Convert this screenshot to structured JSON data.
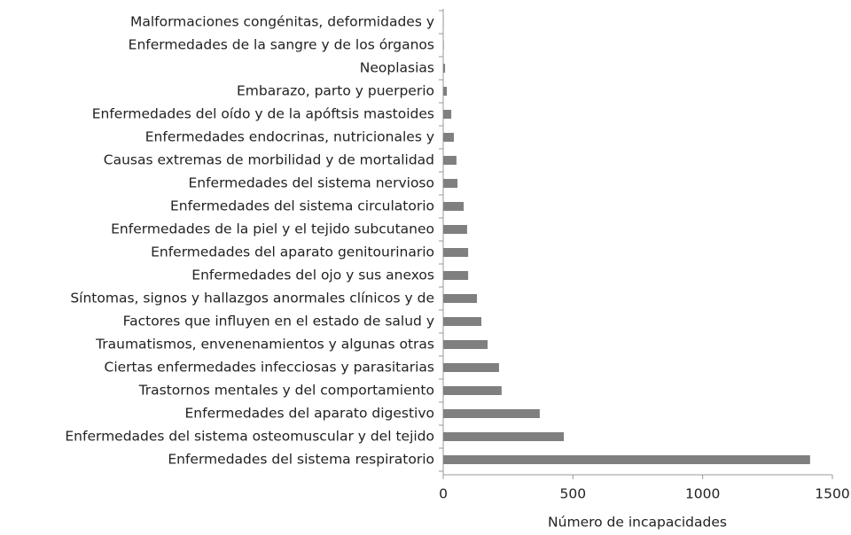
{
  "chart_data": {
    "type": "bar",
    "orientation": "horizontal",
    "xlabel": "Número de incapacidades",
    "categories": [
      "Malformaciones congénitas, deformidades y",
      "Enfermedades de la sangre y de los órganos",
      "Neoplasias",
      "Embarazo, parto y puerperio",
      "Enfermedades del oído y de la apóftsis mastoides",
      "Enfermedades endocrinas, nutricionales y",
      "Causas extremas de morbilidad y de mortalidad",
      "Enfermedades del sistema nervioso",
      "Enfermedades del sistema circulatorio",
      "Enfermedades de la piel y el tejido subcutaneo",
      "Enfermedades del aparato genitourinario",
      "Enfermedades del ojo y sus anexos",
      "Síntomas, signos y hallazgos anormales clínicos y de",
      "Factores que influyen en el estado de salud y",
      "Traumatismos, envenenamientos y algunas otras",
      "Ciertas enfermedades infecciosas y parasitarias",
      "Trastornos mentales y del comportamiento",
      "Enfermedades del aparato digestivo",
      "Enfermedades del sistema osteomuscular y del tejido",
      "Enfermedades del sistema respiratorio"
    ],
    "values": [
      1,
      2,
      7,
      14,
      31,
      41,
      51,
      55,
      79,
      92,
      96,
      96,
      130,
      147,
      171,
      215,
      225,
      372,
      465,
      1414
    ],
    "color": "#7f7f7f",
    "xlim": [
      0,
      1500
    ],
    "xticks": [
      0,
      500,
      1000,
      1500
    ]
  }
}
